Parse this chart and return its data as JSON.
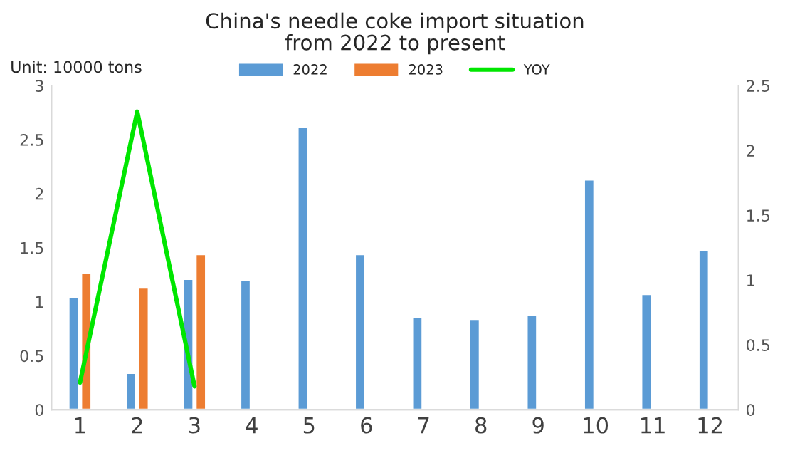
{
  "chart_data": {
    "type": "bar",
    "title": "China's needle coke import situation\nfrom 2022 to present",
    "ylabel": "Unit: 10000 tons",
    "categories": [
      "1",
      "2",
      "3",
      "4",
      "5",
      "6",
      "7",
      "8",
      "9",
      "10",
      "11",
      "12"
    ],
    "series": [
      {
        "name": "2022",
        "color": "#5b9bd5",
        "values": [
          1.04,
          0.34,
          1.21,
          1.2,
          2.62,
          1.44,
          0.86,
          0.84,
          0.88,
          2.13,
          1.07,
          1.48
        ]
      },
      {
        "name": "2023",
        "color": "#ed7d31",
        "values": [
          1.27,
          1.13,
          1.44,
          null,
          null,
          null,
          null,
          null,
          null,
          null,
          null,
          null
        ]
      },
      {
        "name": "YOY",
        "type": "line",
        "axis": "y2",
        "color": "#00e600",
        "values": [
          0.21,
          2.3,
          0.18,
          null,
          null,
          null,
          null,
          null,
          null,
          null,
          null,
          null
        ]
      }
    ],
    "ylim": [
      0,
      3
    ],
    "yticks": [
      0,
      0.5,
      1,
      1.5,
      2,
      2.5,
      3
    ],
    "y2lim": [
      0,
      2.5
    ],
    "y2ticks": [
      0,
      0.5,
      1,
      1.5,
      2,
      2.5
    ],
    "legend": "top",
    "grid": false,
    "marker": "none"
  }
}
